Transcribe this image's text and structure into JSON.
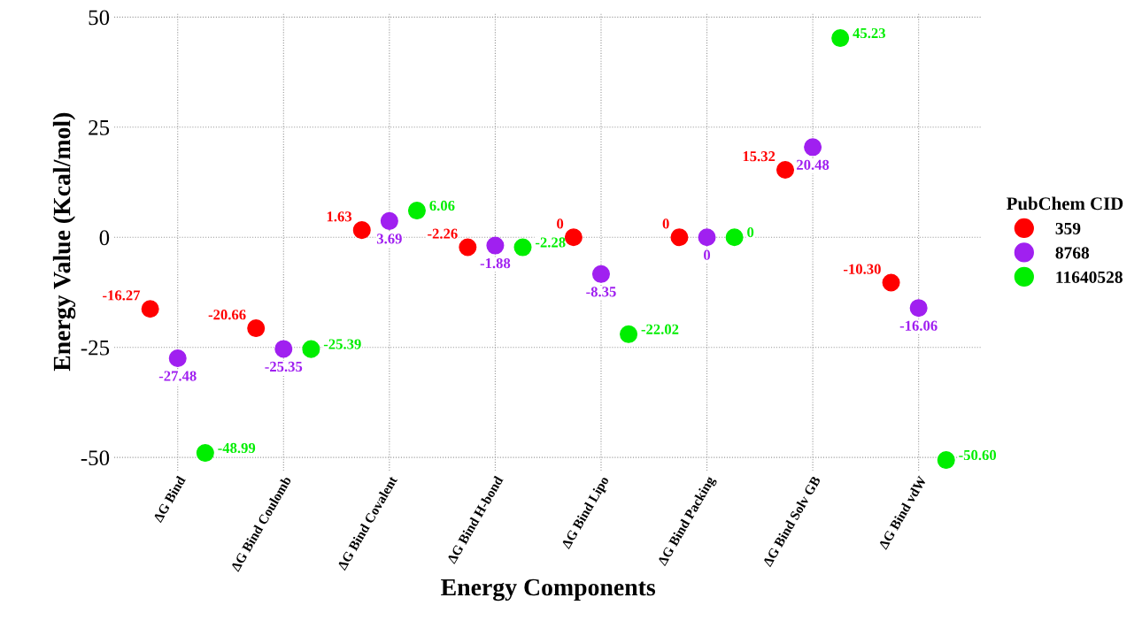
{
  "chart_data": {
    "type": "scatter",
    "xlabel": "Energy Components",
    "ylabel": "Energy Value (Kcal/mol)",
    "legend_title": "PubChem CID",
    "categories": [
      "ΔG Bind",
      "ΔG Bind Coulomb",
      "ΔG Bind Covalent",
      "ΔG Bind H-bond",
      "ΔG Bind Lipo",
      "ΔG Bind Packing",
      "ΔG Bind Solv GB",
      "ΔG Bind vdW"
    ],
    "series": [
      {
        "name": "359",
        "color": "#ff0000",
        "values": [
          -16.27,
          -20.66,
          1.63,
          -2.26,
          0,
          0,
          15.32,
          -10.3
        ],
        "value_labels": [
          "-16.27",
          "-20.66",
          "1.63",
          "-2.26",
          "0",
          "0",
          "15.32",
          "-10.30"
        ]
      },
      {
        "name": "8768",
        "color": "#a020f0",
        "values": [
          -27.48,
          -25.35,
          3.69,
          -1.88,
          -8.35,
          0,
          20.48,
          -16.06
        ],
        "value_labels": [
          "-27.48",
          "-25.35",
          "3.69",
          "-1.88",
          "-8.35",
          "0",
          "20.48",
          "-16.06"
        ]
      },
      {
        "name": "11640528",
        "color": "#00ee00",
        "values": [
          -48.99,
          -25.39,
          6.06,
          -2.28,
          -22.02,
          0,
          45.23,
          -50.6
        ],
        "value_labels": [
          "-48.99",
          "-25.39",
          "6.06",
          "-2.28",
          "-22.02",
          "0",
          "45.23",
          "-50.60"
        ]
      }
    ],
    "ylim": [
      -53,
      51
    ],
    "yticks": [
      -50,
      -25,
      0,
      25,
      50
    ],
    "grid": true,
    "legend": "right",
    "marker": "circle"
  }
}
